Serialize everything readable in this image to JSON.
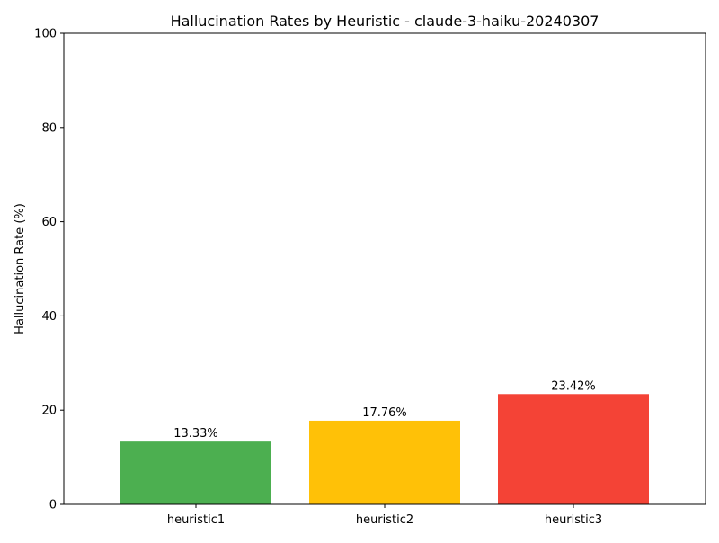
{
  "chart_data": {
    "type": "bar",
    "title": "Hallucination Rates by Heuristic - claude-3-haiku-20240307",
    "xlabel": "",
    "ylabel": "Hallucination Rate (%)",
    "categories": [
      "heuristic1",
      "heuristic2",
      "heuristic3"
    ],
    "values": [
      13.33,
      17.76,
      23.42
    ],
    "value_labels": [
      "13.33%",
      "17.76%",
      "23.42%"
    ],
    "colors": [
      "#4caf50",
      "#ffc107",
      "#f44336"
    ],
    "ylim": [
      0,
      100
    ],
    "yticks": [
      0,
      20,
      40,
      60,
      80,
      100
    ],
    "grid": false,
    "legend": "none"
  }
}
